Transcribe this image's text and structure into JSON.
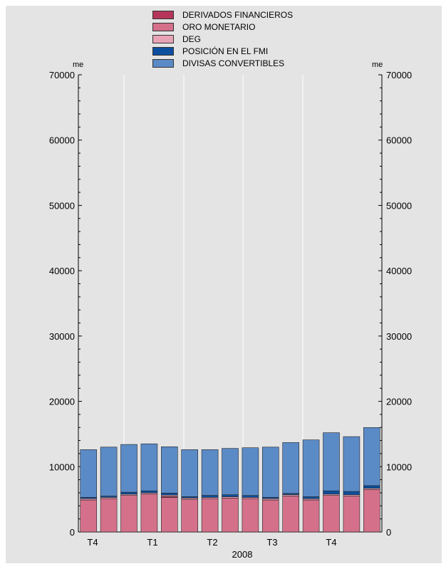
{
  "chart_data": {
    "type": "bar",
    "stacked": true,
    "ylim": [
      0,
      70000
    ],
    "y_ticks": [
      "0",
      "10000",
      "20000",
      "30000",
      "40000",
      "50000",
      "60000",
      "70000"
    ],
    "y_unit_left": "me",
    "y_unit_right": "me",
    "x_group_labels": [
      "T4",
      "T1",
      "T2",
      "T3",
      "T4"
    ],
    "x_year_label": "2008",
    "grid": true,
    "legend_position": "top",
    "series": [
      {
        "name": "DERIVADOS FINANCIEROS",
        "color": "#b5365a",
        "values": [
          0,
          0,
          0,
          0,
          150,
          0,
          0,
          0,
          0,
          0,
          0,
          0,
          0,
          0,
          0
        ]
      },
      {
        "name": "ORO MONETARIO",
        "color": "#d4708a",
        "values": [
          4900,
          5100,
          5600,
          5800,
          5300,
          5000,
          5100,
          5200,
          5100,
          4900,
          5500,
          4900,
          5600,
          5500,
          6500
        ]
      },
      {
        "name": "DEG",
        "color": "#e8a4b6",
        "values": [
          200,
          200,
          200,
          200,
          200,
          200,
          200,
          200,
          200,
          200,
          200,
          200,
          200,
          200,
          200
        ]
      },
      {
        "name": "POSICIÓN EN EL FMI",
        "color": "#0d4f9e",
        "values": [
          200,
          200,
          300,
          300,
          300,
          200,
          300,
          300,
          300,
          200,
          200,
          300,
          500,
          500,
          400
        ]
      },
      {
        "name": "DIVISAS CONVERTIBLES",
        "color": "#5b8bc6",
        "values": [
          7300,
          7500,
          7300,
          7200,
          7100,
          7200,
          7000,
          7100,
          7300,
          7700,
          7800,
          8700,
          8900,
          8400,
          8900
        ]
      }
    ]
  }
}
